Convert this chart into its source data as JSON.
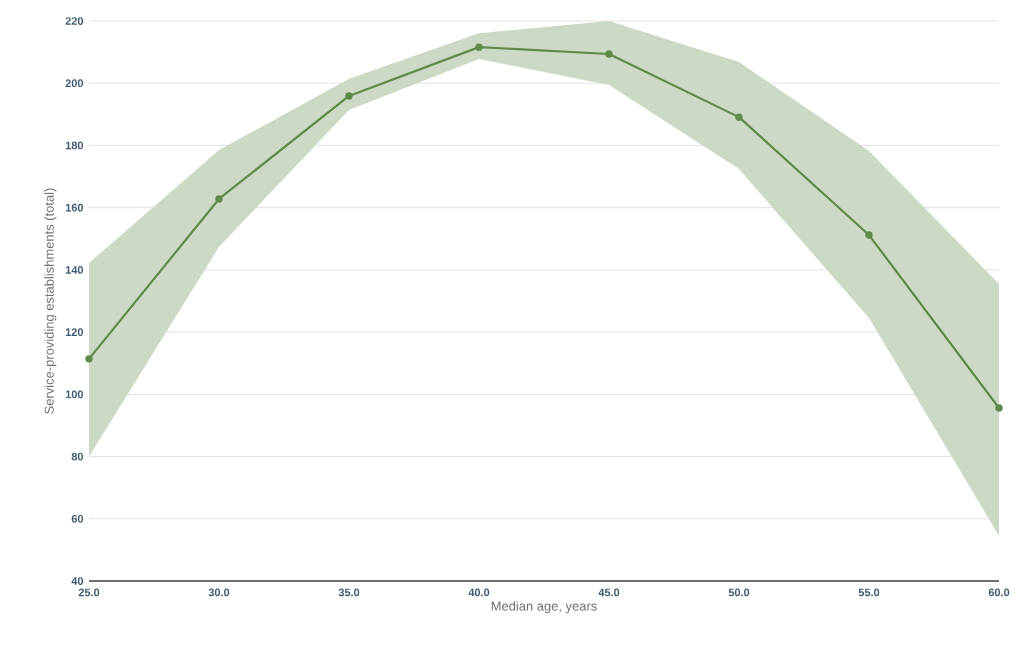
{
  "chart_data": {
    "type": "line",
    "xlabel": "Median age, years",
    "ylabel": "Service-providing establishments (total)",
    "x": [
      25,
      30,
      35,
      40,
      45,
      50,
      55,
      60
    ],
    "series": [
      {
        "color": "#5f8a4b",
        "values": [
          111.4,
          162.8,
          195.9,
          211.6,
          209.4,
          189.1,
          151.2,
          95.6
        ],
        "upper": [
          142.2,
          178.5,
          201.4,
          216.1,
          220,
          206.8,
          178.2,
          135.5
        ],
        "lower": [
          80,
          147.4,
          191.4,
          207.8,
          199.4,
          172.4,
          124.5,
          54.5
        ]
      }
    ],
    "xlim": [
      25,
      60
    ],
    "ylim": [
      40,
      220
    ],
    "xticks": [
      {
        "value": 25,
        "label": "25.0"
      },
      {
        "value": 30,
        "label": "30.0"
      },
      {
        "value": 35,
        "label": "35.0"
      },
      {
        "value": 40,
        "label": "40.0"
      },
      {
        "value": 45,
        "label": "45.0"
      },
      {
        "value": 50,
        "label": "50.0"
      },
      {
        "value": 55,
        "label": "55.0"
      },
      {
        "value": 60,
        "label": "60.0"
      }
    ],
    "yticks": [
      40,
      60,
      80,
      100,
      120,
      140,
      160,
      180,
      200,
      220
    ],
    "grid": "y",
    "marker": "circle",
    "line_style": "solid"
  }
}
